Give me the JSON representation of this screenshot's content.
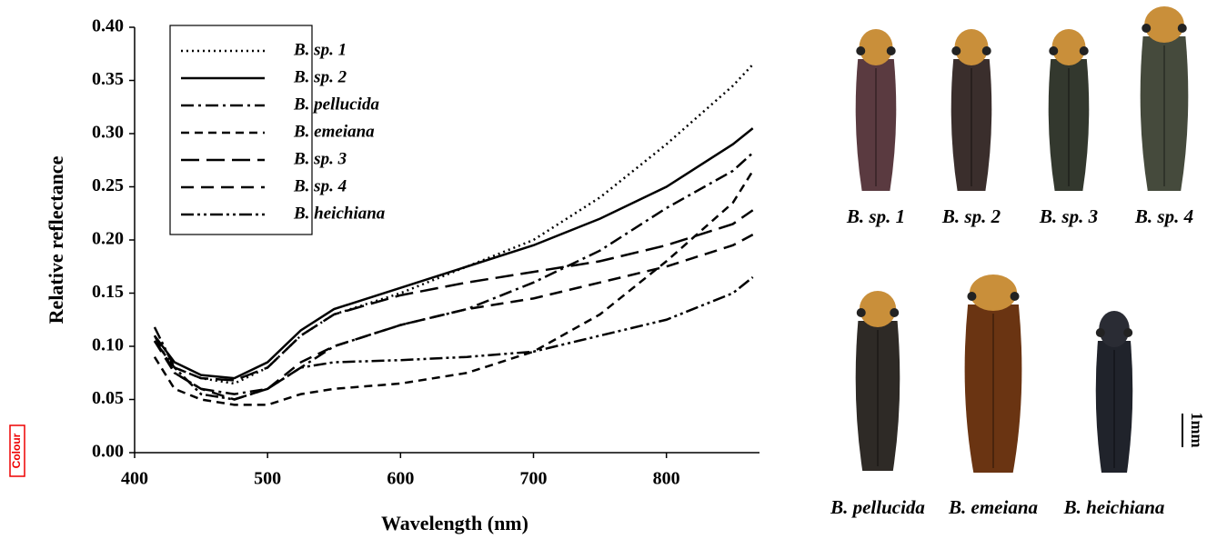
{
  "chart_data": {
    "type": "line",
    "x_label": "Wavelength (nm)",
    "y_label": "Relative reflectance",
    "x": [
      415,
      430,
      450,
      475,
      500,
      525,
      550,
      600,
      650,
      700,
      750,
      800,
      850,
      865
    ],
    "series": [
      {
        "name": "B. sp. 1",
        "color": "#000000",
        "dash": "dotted",
        "values": [
          0.105,
          0.08,
          0.07,
          0.065,
          0.08,
          0.11,
          0.13,
          0.15,
          0.175,
          0.2,
          0.24,
          0.29,
          0.345,
          0.365
        ]
      },
      {
        "name": "B. sp. 2",
        "color": "#000000",
        "dash": "solid",
        "values": [
          0.11,
          0.085,
          0.073,
          0.07,
          0.085,
          0.115,
          0.135,
          0.155,
          0.175,
          0.195,
          0.22,
          0.25,
          0.29,
          0.305
        ]
      },
      {
        "name": "B. pellucida",
        "color": "#000000",
        "dash": "dash-dot",
        "values": [
          0.11,
          0.075,
          0.06,
          0.055,
          0.06,
          0.08,
          0.1,
          0.12,
          0.135,
          0.16,
          0.19,
          0.23,
          0.265,
          0.282
        ]
      },
      {
        "name": "B. emeiana",
        "color": "#000000",
        "dash": "dashed",
        "values": [
          0.09,
          0.06,
          0.05,
          0.045,
          0.045,
          0.055,
          0.06,
          0.065,
          0.075,
          0.095,
          0.13,
          0.18,
          0.235,
          0.265
        ]
      },
      {
        "name": "B. sp. 3",
        "color": "#000000",
        "dash": "long-dash",
        "values": [
          0.105,
          0.08,
          0.07,
          0.068,
          0.08,
          0.11,
          0.13,
          0.148,
          0.16,
          0.17,
          0.18,
          0.195,
          0.215,
          0.228
        ]
      },
      {
        "name": "B. sp. 4",
        "color": "#000000",
        "dash": "medium-dash",
        "values": [
          0.105,
          0.075,
          0.06,
          0.05,
          0.06,
          0.085,
          0.1,
          0.12,
          0.135,
          0.145,
          0.16,
          0.175,
          0.195,
          0.205
        ]
      },
      {
        "name": "B. heichiana",
        "color": "#000000",
        "dash": "dash-dot-dot",
        "values": [
          0.118,
          0.08,
          0.055,
          0.05,
          0.06,
          0.08,
          0.085,
          0.087,
          0.09,
          0.095,
          0.11,
          0.125,
          0.15,
          0.165
        ]
      }
    ],
    "xlim": [
      400,
      870
    ],
    "ylim": [
      0,
      0.4
    ],
    "xticks": [
      400,
      500,
      600,
      700,
      800
    ],
    "yticks": [
      {
        "value": 0,
        "label": "0.00"
      },
      {
        "value": 0.05,
        "label": "0.05"
      },
      {
        "value": 0.1,
        "label": "0.10"
      },
      {
        "value": 0.15,
        "label": "0.15"
      },
      {
        "value": 0.2,
        "label": "0.20"
      },
      {
        "value": 0.25,
        "label": "0.25"
      },
      {
        "value": 0.3,
        "label": "0.30"
      },
      {
        "value": 0.35,
        "label": "0.35"
      },
      {
        "value": 0.4,
        "label": "0.40"
      }
    ],
    "grid": false,
    "legend": "upper left"
  },
  "specimens": [
    "B. sp. 1",
    "B. sp. 2",
    "B. sp. 3",
    "B. sp. 4",
    "B. pellucida",
    "B. emeiana",
    "B. heichiana"
  ],
  "scale_label": "1mm",
  "badge": "Colour"
}
